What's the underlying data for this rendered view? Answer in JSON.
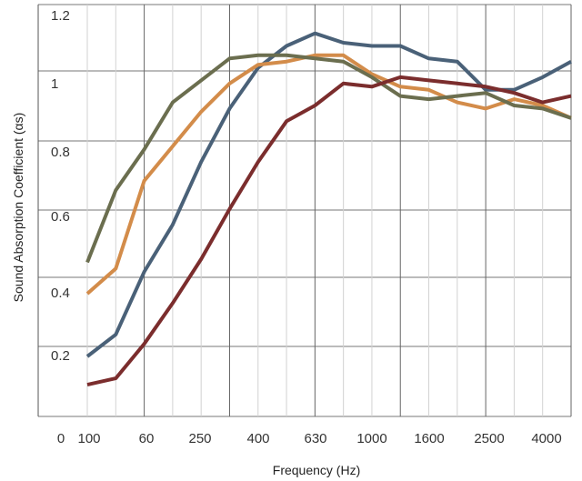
{
  "chart_data": {
    "type": "line",
    "title": "",
    "xlabel": "Frequency (Hz)",
    "ylabel": "Sound Absorption Coefficient (αs)",
    "xtick_labels": [
      "0",
      "100",
      "60",
      "250",
      "400",
      "630",
      "1000",
      "1600",
      "2500",
      "4000"
    ],
    "ytick_labels": [
      "0.2",
      "0.4",
      "0.6",
      "0.8",
      "1",
      "1.2"
    ],
    "ylim": [
      0,
      1.3
    ],
    "grid": true,
    "legend": "none",
    "x_frequencies_hz": [
      100,
      125,
      160,
      200,
      250,
      315,
      400,
      500,
      630,
      800,
      1000,
      1250,
      1600,
      2000,
      2500,
      3150,
      4000,
      5000
    ],
    "series": [
      {
        "color": "#4a6178",
        "values": [
          0.2,
          0.27,
          0.47,
          0.62,
          0.82,
          0.99,
          1.12,
          1.19,
          1.23,
          1.2,
          1.19,
          1.19,
          1.15,
          1.14,
          1.05,
          1.05,
          1.09,
          1.14
        ]
      },
      {
        "color": "#d38c4a",
        "values": [
          0.4,
          0.48,
          0.76,
          0.87,
          0.98,
          1.07,
          1.13,
          1.14,
          1.16,
          1.16,
          1.1,
          1.06,
          1.05,
          1.01,
          0.99,
          1.02,
          1.0,
          0.96
        ]
      },
      {
        "color": "#6b6e4f",
        "values": [
          0.5,
          0.73,
          0.86,
          1.01,
          1.08,
          1.15,
          1.16,
          1.16,
          1.15,
          1.14,
          1.09,
          1.03,
          1.02,
          1.03,
          1.04,
          1.0,
          0.99,
          0.96
        ]
      },
      {
        "color": "#7b2d2d",
        "values": [
          0.11,
          0.13,
          0.24,
          0.37,
          0.51,
          0.67,
          0.82,
          0.95,
          1.0,
          1.07,
          1.06,
          1.09,
          1.08,
          1.07,
          1.06,
          1.04,
          1.01,
          1.03
        ]
      }
    ]
  }
}
